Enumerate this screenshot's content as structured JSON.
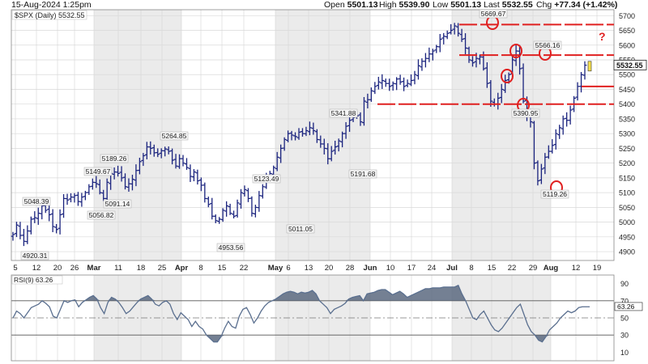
{
  "header": {
    "date": "15-Aug-2024 1:25pm",
    "open_label": "Open",
    "open": "5501.13",
    "high_label": "High",
    "high": "5539.90",
    "low_label": "Low",
    "low": "5501.13",
    "last_label": "Last",
    "last": "5532.55",
    "chg_label": "Chg",
    "chg": "+77.34 (+1.42%)"
  },
  "chart_data": [
    {
      "type": "ohlc",
      "title": "$SPX (Daily) 5532.55",
      "last_price": "5532.55",
      "ylim": [
        4870,
        5720
      ],
      "y_ticks": [
        4900,
        4950,
        5000,
        5050,
        5100,
        5150,
        5200,
        5250,
        5300,
        5350,
        5400,
        5450,
        5500,
        5550,
        5600,
        5650,
        5700
      ],
      "x_tick_labels": [
        "5",
        "12",
        "20",
        "26",
        "Mar",
        "11",
        "18",
        "25",
        "Apr",
        "8",
        "15",
        "22",
        "May",
        "6",
        "13",
        "20",
        "28",
        "Jun",
        "10",
        "17",
        "24",
        "Jul",
        "8",
        "15",
        "22",
        "29",
        "Aug",
        "12",
        "19"
      ],
      "x_tick_bold": [
        "Mar",
        "Apr",
        "May",
        "Jun",
        "Jul",
        "Aug"
      ],
      "closes": [
        4958,
        4990,
        4955,
        4935,
        4970,
        5010,
        5015,
        5030,
        5055,
        5040,
        5025,
        4985,
        4975,
        5025,
        5080,
        5075,
        5085,
        5090,
        5070,
        5085,
        5100,
        5120,
        5135,
        5130,
        5100,
        5080,
        5135,
        5165,
        5170,
        5165,
        5150,
        5120,
        5130,
        5145,
        5175,
        5205,
        5225,
        5255,
        5250,
        5235,
        5230,
        5242,
        5248,
        5240,
        5210,
        5190,
        5215,
        5200,
        5185,
        5155,
        5170,
        5140,
        5125,
        5080,
        5060,
        5020,
        5005,
        5010,
        5040,
        5055,
        5030,
        5020,
        5065,
        5100,
        5110,
        5080,
        5030,
        5050,
        5090,
        5120,
        5150,
        5165,
        5185,
        5220,
        5250,
        5280,
        5300,
        5295,
        5290,
        5305,
        5300,
        5310,
        5320,
        5310,
        5280,
        5265,
        5250,
        5215,
        5240,
        5255,
        5275,
        5300,
        5325,
        5345,
        5355,
        5360,
        5340,
        5410,
        5415,
        5445,
        5460,
        5475,
        5480,
        5470,
        5460,
        5470,
        5485,
        5475,
        5460,
        5470,
        5480,
        5500,
        5530,
        5545,
        5555,
        5570,
        5580,
        5595,
        5620,
        5630,
        5640,
        5650,
        5665,
        5640,
        5620,
        5590,
        5550,
        5540,
        5555,
        5560,
        5520,
        5470,
        5410,
        5400,
        5420,
        5450,
        5480,
        5500,
        5550,
        5580,
        5520,
        5410,
        5360,
        5340,
        5200,
        5140,
        5180,
        5220,
        5240,
        5260,
        5300,
        5320,
        5350,
        5345,
        5380,
        5420,
        5460,
        5500,
        5532
      ],
      "annotations": [
        "4920.31",
        "5048.39",
        "5056.82",
        "5149.67",
        "5091.14",
        "5189.26",
        "5264.85",
        "4953.56",
        "5123.49",
        "5011.05",
        "5341.88",
        "5191.68",
        "5669.67",
        "5566.16",
        "5390.95",
        "5119.26"
      ],
      "levels": [
        5669.67,
        5566.16,
        5400
      ],
      "question_mark": "?"
    },
    {
      "type": "line",
      "title": "RSI(9) 63.26",
      "last_value": "63.26",
      "ylim": [
        0,
        100
      ],
      "y_ticks": [
        10,
        30,
        50,
        70,
        90
      ],
      "overbought": 70,
      "oversold": 30,
      "values": [
        50,
        58,
        55,
        50,
        56,
        62,
        64,
        66,
        70,
        67,
        63,
        52,
        50,
        60,
        70,
        68,
        70,
        71,
        63,
        68,
        71,
        74,
        76,
        72,
        62,
        55,
        68,
        74,
        72,
        68,
        62,
        55,
        58,
        63,
        68,
        72,
        74,
        76,
        72,
        66,
        64,
        68,
        70,
        66,
        55,
        48,
        56,
        52,
        48,
        40,
        46,
        40,
        37,
        30,
        26,
        22,
        22,
        28,
        38,
        46,
        40,
        38,
        52,
        60,
        62,
        54,
        44,
        50,
        58,
        64,
        68,
        70,
        72,
        75,
        78,
        80,
        81,
        80,
        78,
        80,
        79,
        80,
        82,
        78,
        70,
        66,
        62,
        55,
        60,
        62,
        64,
        67,
        72,
        74,
        75,
        76,
        70,
        78,
        79,
        80,
        82,
        83,
        83,
        80,
        77,
        79,
        81,
        78,
        74,
        76,
        78,
        80,
        82,
        84,
        84,
        85,
        85,
        85,
        86,
        86,
        86,
        86,
        88,
        78,
        70,
        60,
        50,
        48,
        54,
        58,
        50,
        42,
        36,
        34,
        38,
        44,
        50,
        56,
        62,
        66,
        54,
        42,
        34,
        30,
        24,
        22,
        28,
        36,
        40,
        44,
        50,
        54,
        58,
        56,
        58,
        62,
        63,
        63,
        63
      ]
    }
  ]
}
